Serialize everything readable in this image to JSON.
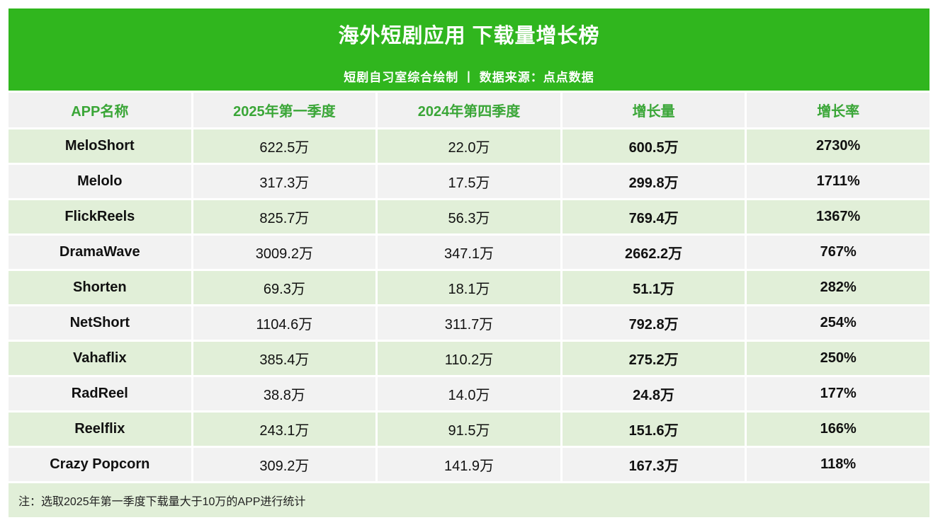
{
  "banner": {
    "title": "海外短剧应用 下载量增长榜",
    "subtitle": "短剧自习室综合绘制 丨 数据来源：点点数据"
  },
  "table": {
    "columns": [
      "APP名称",
      "2025年第一季度",
      "2024年第四季度",
      "增长量",
      "增长率"
    ],
    "rows": [
      [
        "MeloShort",
        "622.5万",
        "22.0万",
        "600.5万",
        "2730%"
      ],
      [
        "Melolo",
        "317.3万",
        "17.5万",
        "299.8万",
        "1711%"
      ],
      [
        "FlickReels",
        "825.7万",
        "56.3万",
        "769.4万",
        "1367%"
      ],
      [
        "DramaWave",
        "3009.2万",
        "347.1万",
        "2662.2万",
        "767%"
      ],
      [
        "Shorten",
        "69.3万",
        "18.1万",
        "51.1万",
        "282%"
      ],
      [
        "NetShort",
        "1104.6万",
        "311.7万",
        "792.8万",
        "254%"
      ],
      [
        "Vahaflix",
        "385.4万",
        "110.2万",
        "275.2万",
        "250%"
      ],
      [
        "RadReel",
        "38.8万",
        "14.0万",
        "24.8万",
        "177%"
      ],
      [
        "Reelflix",
        "243.1万",
        "91.5万",
        "151.6万",
        "166%"
      ],
      [
        "Crazy Popcorn",
        "309.2万",
        "141.9万",
        "167.3万",
        "118%"
      ]
    ]
  },
  "footer": {
    "note": "注：选取2025年第一季度下载量大于10万的APP进行统计"
  },
  "colors": {
    "banner_green": "#30B61E",
    "header_text_green": "#3AA637",
    "row_green": "#E1EFD8",
    "row_gray": "#F2F2F2",
    "header_row_bg": "#F1F1F1"
  },
  "chart_data": {
    "type": "table",
    "title": "海外短剧应用 下载量增长榜",
    "subtitle": "短剧自习室综合绘制 丨 数据来源：点点数据",
    "columns": [
      "APP名称",
      "2025年第一季度",
      "2024年第四季度",
      "增长量",
      "增长率"
    ],
    "rows": [
      {
        "app": "MeloShort",
        "q1_2025_wan": 622.5,
        "q4_2024_wan": 22.0,
        "growth_wan": 600.5,
        "growth_rate_pct": 2730
      },
      {
        "app": "Melolo",
        "q1_2025_wan": 317.3,
        "q4_2024_wan": 17.5,
        "growth_wan": 299.8,
        "growth_rate_pct": 1711
      },
      {
        "app": "FlickReels",
        "q1_2025_wan": 825.7,
        "q4_2024_wan": 56.3,
        "growth_wan": 769.4,
        "growth_rate_pct": 1367
      },
      {
        "app": "DramaWave",
        "q1_2025_wan": 3009.2,
        "q4_2024_wan": 347.1,
        "growth_wan": 2662.2,
        "growth_rate_pct": 767
      },
      {
        "app": "Shorten",
        "q1_2025_wan": 69.3,
        "q4_2024_wan": 18.1,
        "growth_wan": 51.1,
        "growth_rate_pct": 282
      },
      {
        "app": "NetShort",
        "q1_2025_wan": 1104.6,
        "q4_2024_wan": 311.7,
        "growth_wan": 792.8,
        "growth_rate_pct": 254
      },
      {
        "app": "Vahaflix",
        "q1_2025_wan": 385.4,
        "q4_2024_wan": 110.2,
        "growth_wan": 275.2,
        "growth_rate_pct": 250
      },
      {
        "app": "RadReel",
        "q1_2025_wan": 38.8,
        "q4_2024_wan": 14.0,
        "growth_wan": 24.8,
        "growth_rate_pct": 177
      },
      {
        "app": "Reelflix",
        "q1_2025_wan": 243.1,
        "q4_2024_wan": 91.5,
        "growth_wan": 151.6,
        "growth_rate_pct": 166
      },
      {
        "app": "Crazy Popcorn",
        "q1_2025_wan": 309.2,
        "q4_2024_wan": 141.9,
        "growth_wan": 167.3,
        "growth_rate_pct": 118
      }
    ],
    "note": "注：选取2025年第一季度下载量大于10万的APP进行统计"
  }
}
